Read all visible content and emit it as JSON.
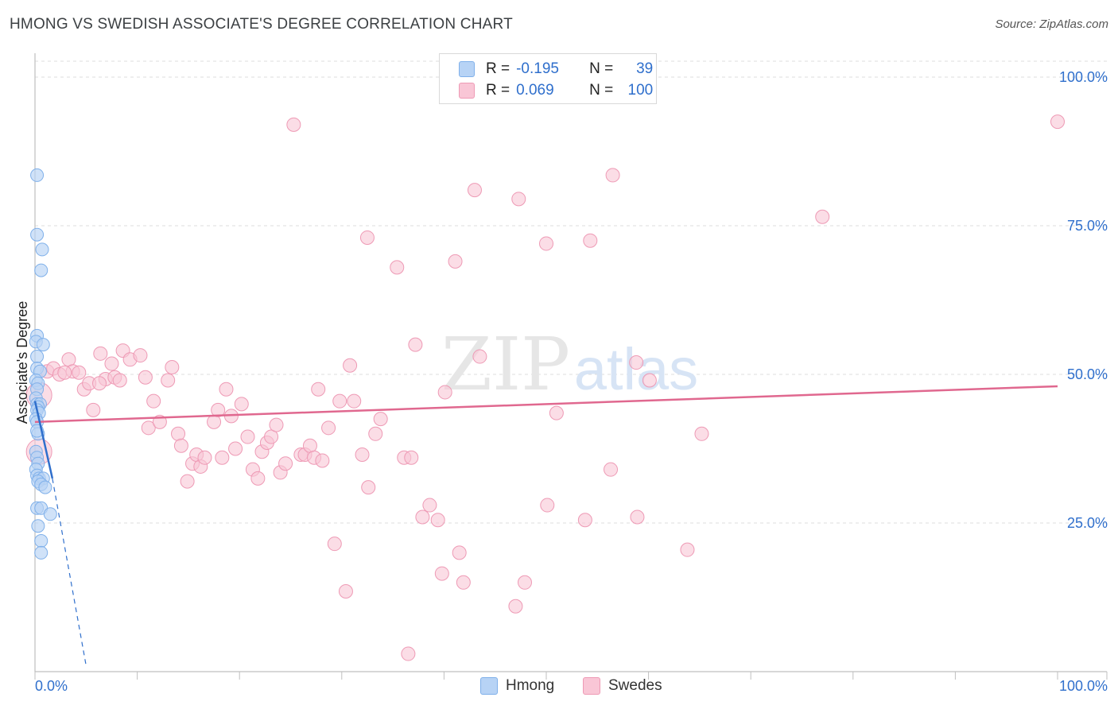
{
  "title": "HMONG VS SWEDISH ASSOCIATE'S DEGREE CORRELATION CHART",
  "source": "Source: ZipAtlas.com",
  "watermark": {
    "zip": "ZIP",
    "atlas": "atlas"
  },
  "legend": {
    "rows": [
      {
        "r_label": "R =",
        "r_value": "-0.195",
        "n_label": "N =",
        "n_value": "39"
      },
      {
        "r_label": "R =",
        "r_value": "0.069",
        "n_label": "N =",
        "n_value": "100"
      }
    ]
  },
  "colors": {
    "hmong_fill": "#b7d3f5",
    "hmong_stroke": "#7fb0ea",
    "hmong_line": "#2f6fcc",
    "swedes_fill": "#f9c6d6",
    "swedes_stroke": "#ee9ab5",
    "swedes_line": "#e0688f",
    "axis_text": "#2f6fcc",
    "grid": "#dcdcdc"
  },
  "chart_data": {
    "type": "scatter",
    "title": "HMONG VS SWEDISH ASSOCIATE'S DEGREE CORRELATION CHART",
    "xlabel": "",
    "ylabel": "Associate's Degree",
    "xlim": [
      0,
      100
    ],
    "ylim": [
      0,
      102
    ],
    "x_tick_labels": {
      "left": "0.0%",
      "right": "100.0%"
    },
    "y_ticks": [
      {
        "value": 100,
        "label": "100.0%"
      },
      {
        "value": 75,
        "label": "75.0%"
      },
      {
        "value": 50,
        "label": "50.0%"
      },
      {
        "value": 25,
        "label": "25.0%"
      }
    ],
    "series": [
      {
        "name": "Hmong",
        "r": -0.195,
        "n": 39,
        "trend": {
          "x0": 0,
          "y0": 45.5,
          "x1": 1.7,
          "y1": 32.5,
          "dash_x1": 5.0,
          "dash_y1": 1.0
        },
        "points": [
          [
            0.2,
            83.5
          ],
          [
            0.2,
            73.5
          ],
          [
            0.7,
            71.0
          ],
          [
            0.6,
            67.5
          ],
          [
            0.2,
            56.5
          ],
          [
            0.1,
            55.5
          ],
          [
            0.8,
            55.0
          ],
          [
            0.2,
            53.0
          ],
          [
            0.2,
            51.0
          ],
          [
            0.5,
            50.5
          ],
          [
            0.1,
            49.0
          ],
          [
            0.3,
            48.5
          ],
          [
            0.2,
            47.5
          ],
          [
            0.1,
            46.0
          ],
          [
            0.2,
            45.0
          ],
          [
            0.5,
            45.0
          ],
          [
            0.3,
            44.5
          ],
          [
            0.2,
            44.0
          ],
          [
            0.4,
            43.5
          ],
          [
            0.1,
            42.5
          ],
          [
            0.2,
            42.0
          ],
          [
            0.3,
            40.0
          ],
          [
            0.1,
            37.0
          ],
          [
            0.2,
            36.0
          ],
          [
            0.3,
            35.0
          ],
          [
            0.1,
            34.0
          ],
          [
            0.2,
            33.0
          ],
          [
            0.4,
            32.5
          ],
          [
            0.8,
            32.5
          ],
          [
            0.3,
            32.0
          ],
          [
            0.6,
            31.5
          ],
          [
            1.0,
            31.0
          ],
          [
            0.2,
            27.5
          ],
          [
            0.6,
            27.5
          ],
          [
            1.5,
            26.5
          ],
          [
            0.3,
            24.5
          ],
          [
            0.6,
            22.0
          ],
          [
            0.6,
            20.0
          ],
          [
            0.2,
            40.5
          ]
        ]
      },
      {
        "name": "Swedes",
        "r": 0.069,
        "n": 100,
        "trend": {
          "x0": 0,
          "y0": 42.0,
          "x1": 100,
          "y1": 48.0
        },
        "points": [
          [
            0.4,
            46.5
          ],
          [
            0.4,
            37.0
          ],
          [
            1.2,
            50.5
          ],
          [
            1.8,
            51.0
          ],
          [
            2.4,
            50.0
          ],
          [
            3.3,
            52.5
          ],
          [
            3.7,
            50.5
          ],
          [
            4.3,
            50.3
          ],
          [
            4.8,
            47.5
          ],
          [
            5.3,
            48.5
          ],
          [
            5.7,
            44.0
          ],
          [
            6.4,
            53.5
          ],
          [
            6.9,
            49.2
          ],
          [
            7.5,
            51.8
          ],
          [
            7.8,
            49.5
          ],
          [
            8.3,
            49.0
          ],
          [
            8.6,
            54.0
          ],
          [
            9.3,
            52.5
          ],
          [
            10.3,
            53.2
          ],
          [
            10.8,
            49.5
          ],
          [
            11.1,
            41.0
          ],
          [
            11.6,
            45.5
          ],
          [
            12.2,
            42.0
          ],
          [
            13.0,
            49.0
          ],
          [
            13.4,
            51.2
          ],
          [
            14.0,
            40.0
          ],
          [
            14.3,
            38.0
          ],
          [
            14.9,
            32.0
          ],
          [
            15.4,
            35.0
          ],
          [
            15.8,
            36.5
          ],
          [
            16.2,
            34.5
          ],
          [
            16.6,
            36.0
          ],
          [
            17.5,
            42.0
          ],
          [
            17.9,
            44.0
          ],
          [
            18.3,
            36.0
          ],
          [
            18.7,
            47.5
          ],
          [
            19.2,
            43.0
          ],
          [
            19.6,
            37.5
          ],
          [
            20.2,
            45.0
          ],
          [
            20.8,
            39.5
          ],
          [
            21.3,
            34.0
          ],
          [
            21.8,
            32.5
          ],
          [
            22.2,
            37.0
          ],
          [
            22.7,
            38.5
          ],
          [
            23.1,
            39.5
          ],
          [
            23.6,
            41.5
          ],
          [
            24.0,
            33.5
          ],
          [
            24.5,
            35.0
          ],
          [
            25.3,
            92.0
          ],
          [
            26.0,
            36.5
          ],
          [
            26.4,
            36.5
          ],
          [
            26.9,
            38.0
          ],
          [
            27.3,
            36.0
          ],
          [
            27.7,
            47.5
          ],
          [
            28.1,
            35.5
          ],
          [
            28.7,
            41.0
          ],
          [
            29.3,
            21.5
          ],
          [
            29.8,
            45.5
          ],
          [
            30.4,
            13.5
          ],
          [
            30.8,
            51.5
          ],
          [
            31.2,
            45.5
          ],
          [
            32.0,
            36.5
          ],
          [
            32.6,
            31.0
          ],
          [
            32.5,
            73.0
          ],
          [
            33.3,
            40.0
          ],
          [
            33.8,
            42.5
          ],
          [
            35.4,
            68.0
          ],
          [
            36.1,
            36.0
          ],
          [
            36.8,
            36.0
          ],
          [
            37.2,
            55.0
          ],
          [
            36.5,
            3.0
          ],
          [
            37.9,
            26.0
          ],
          [
            38.6,
            28.0
          ],
          [
            39.4,
            25.5
          ],
          [
            39.8,
            16.5
          ],
          [
            40.1,
            47.0
          ],
          [
            41.1,
            69.0
          ],
          [
            41.5,
            20.0
          ],
          [
            41.9,
            15.0
          ],
          [
            43.0,
            81.0
          ],
          [
            43.5,
            53.0
          ],
          [
            47.3,
            79.5
          ],
          [
            47.0,
            11.0
          ],
          [
            47.9,
            15.0
          ],
          [
            50.0,
            72.0
          ],
          [
            50.1,
            28.0
          ],
          [
            51.0,
            43.5
          ],
          [
            53.8,
            25.5
          ],
          [
            54.3,
            72.5
          ],
          [
            56.3,
            34.0
          ],
          [
            56.5,
            83.5
          ],
          [
            58.8,
            52.0
          ],
          [
            58.9,
            26.0
          ],
          [
            60.1,
            49.0
          ],
          [
            63.8,
            20.5
          ],
          [
            65.2,
            40.0
          ],
          [
            77.0,
            76.5
          ],
          [
            100.0,
            92.5
          ],
          [
            2.9,
            50.3
          ],
          [
            6.3,
            48.5
          ]
        ]
      }
    ],
    "bottom_legend": [
      "Hmong",
      "Swedes"
    ]
  }
}
